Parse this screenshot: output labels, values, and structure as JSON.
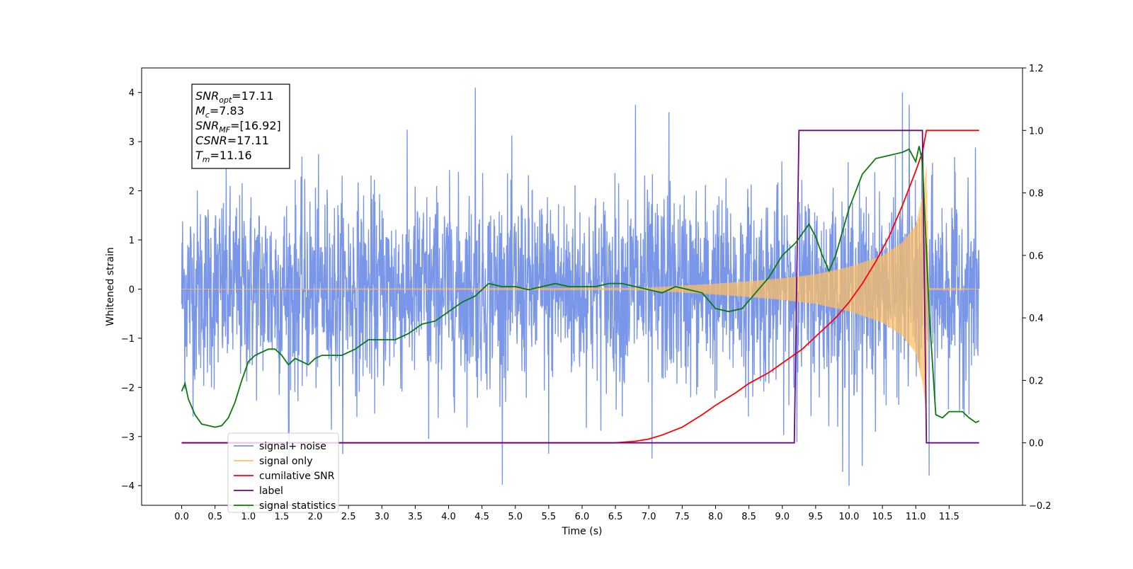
{
  "chart_data": {
    "type": "line",
    "xlabel": "Time (s)",
    "ylabel": "Whitened strain",
    "xlim": [
      -0.6,
      12.6
    ],
    "ylim": [
      -4.4,
      4.5
    ],
    "ylim_right": [
      -0.2,
      1.2
    ],
    "x_ticks": [
      "0.0",
      "0.5",
      "1.0",
      "1.5",
      "2.0",
      "2.5",
      "3.0",
      "3.5",
      "4.0",
      "4.5",
      "5.0",
      "5.5",
      "6.0",
      "6.5",
      "7.0",
      "7.5",
      "8.0",
      "8.5",
      "9.0",
      "9.5",
      "10.0",
      "10.5",
      "11.0",
      "11.5"
    ],
    "y_ticks": [
      "4",
      "3",
      "2",
      "1",
      "0",
      "−1",
      "−2",
      "−3",
      "−4"
    ],
    "y_ticks_right": [
      "1.2",
      "1.0",
      "0.8",
      "0.6",
      "0.4",
      "0.2",
      "0.0",
      "−0.2"
    ],
    "grid": false,
    "legend_position": "lower-left",
    "annotation": {
      "lines": [
        {
          "base": "SNR",
          "sub": "opt",
          "value": "=17.11"
        },
        {
          "base": "M",
          "sub": "c",
          "value": "=7.83"
        },
        {
          "base": "SNR",
          "sub": "MF",
          "value": "=[16.92]"
        },
        {
          "base": "CSNR",
          "sub": "",
          "value": "=17.11"
        },
        {
          "base": "T",
          "sub": "m",
          "value": "=11.16"
        }
      ]
    },
    "series": [
      {
        "name": "signal+ noise",
        "axis": "left",
        "color": "#7a96e8",
        "kind": "noise",
        "t_range": [
          0,
          11.95
        ],
        "typical_amplitude": 1.8,
        "notable_peaks": [
          {
            "x": 4.4,
            "y": 4.1
          },
          {
            "x": 10.8,
            "y": 4.0
          },
          {
            "x": 10.0,
            "y": -4.0
          },
          {
            "x": 10.2,
            "y": -3.6
          },
          {
            "x": 11.2,
            "y": -3.8
          },
          {
            "x": 7.05,
            "y": -3.45
          },
          {
            "x": 5.5,
            "y": -3.35
          },
          {
            "x": 7.3,
            "y": 3.6
          },
          {
            "x": 10.9,
            "y": 3.75
          },
          {
            "x": 6.8,
            "y": 3.75
          },
          {
            "x": 1.6,
            "y": -2.95
          },
          {
            "x": 3.7,
            "y": -3.05
          }
        ]
      },
      {
        "name": "signal only",
        "axis": "left",
        "color": "#ffbf60",
        "kind": "chirp",
        "t_range": [
          0,
          11.95
        ],
        "merger_time": 11.16,
        "envelope": [
          [
            0,
            0.0
          ],
          [
            6.5,
            0.01
          ],
          [
            7.0,
            0.03
          ],
          [
            7.5,
            0.07
          ],
          [
            8.0,
            0.11
          ],
          [
            8.5,
            0.16
          ],
          [
            9.0,
            0.22
          ],
          [
            9.5,
            0.3
          ],
          [
            10.0,
            0.45
          ],
          [
            10.5,
            0.68
          ],
          [
            10.8,
            0.95
          ],
          [
            11.0,
            1.3
          ],
          [
            11.1,
            1.9
          ],
          [
            11.16,
            2.5
          ],
          [
            11.2,
            0.02
          ],
          [
            11.95,
            0.0
          ]
        ]
      },
      {
        "name": "cumilative SNR",
        "axis": "right",
        "color": "#ff0000",
        "x": [
          0,
          6.5,
          6.8,
          7.0,
          7.2,
          7.5,
          7.8,
          8.0,
          8.3,
          8.5,
          8.8,
          9.0,
          9.3,
          9.5,
          9.8,
          10.0,
          10.2,
          10.4,
          10.6,
          10.8,
          11.0,
          11.1,
          11.16,
          11.2,
          11.95
        ],
        "y": [
          0,
          0,
          0.005,
          0.012,
          0.025,
          0.05,
          0.09,
          0.12,
          0.16,
          0.19,
          0.225,
          0.255,
          0.3,
          0.34,
          0.4,
          0.45,
          0.51,
          0.58,
          0.66,
          0.76,
          0.87,
          0.93,
          1.0,
          1.0,
          1.0
        ]
      },
      {
        "name": "label",
        "axis": "right",
        "color": "#6a0a82",
        "x": [
          0,
          9.18,
          9.25,
          11.1,
          11.16,
          11.95
        ],
        "y": [
          0,
          0,
          1,
          1,
          0,
          0
        ]
      },
      {
        "name": "signal statistics",
        "axis": "right",
        "color": "#0a7a0a",
        "x": [
          0,
          0.05,
          0.1,
          0.2,
          0.3,
          0.4,
          0.5,
          0.6,
          0.7,
          0.8,
          0.9,
          1.0,
          1.1,
          1.2,
          1.3,
          1.4,
          1.5,
          1.6,
          1.7,
          1.8,
          1.9,
          2.0,
          2.1,
          2.2,
          2.4,
          2.6,
          2.8,
          3.0,
          3.2,
          3.4,
          3.6,
          3.8,
          4.0,
          4.2,
          4.4,
          4.6,
          4.8,
          5.0,
          5.2,
          5.4,
          5.6,
          5.8,
          6.0,
          6.2,
          6.4,
          6.6,
          6.8,
          7.0,
          7.2,
          7.4,
          7.6,
          7.8,
          8.0,
          8.2,
          8.4,
          8.6,
          8.8,
          9.0,
          9.2,
          9.4,
          9.5,
          9.6,
          9.7,
          9.8,
          10.0,
          10.2,
          10.4,
          10.6,
          10.8,
          10.9,
          11.0,
          11.05,
          11.1,
          11.2,
          11.3,
          11.4,
          11.5,
          11.6,
          11.7,
          11.8,
          11.9,
          11.95
        ],
        "y": [
          0.165,
          0.19,
          0.14,
          0.09,
          0.06,
          0.055,
          0.05,
          0.055,
          0.08,
          0.13,
          0.2,
          0.26,
          0.28,
          0.29,
          0.3,
          0.3,
          0.28,
          0.25,
          0.27,
          0.26,
          0.25,
          0.27,
          0.28,
          0.28,
          0.28,
          0.3,
          0.33,
          0.33,
          0.33,
          0.35,
          0.38,
          0.39,
          0.42,
          0.45,
          0.47,
          0.51,
          0.5,
          0.5,
          0.49,
          0.5,
          0.51,
          0.5,
          0.5,
          0.5,
          0.51,
          0.51,
          0.5,
          0.49,
          0.48,
          0.5,
          0.49,
          0.48,
          0.43,
          0.42,
          0.43,
          0.48,
          0.53,
          0.6,
          0.64,
          0.7,
          0.66,
          0.6,
          0.55,
          0.6,
          0.75,
          0.86,
          0.91,
          0.92,
          0.93,
          0.94,
          0.9,
          0.95,
          0.9,
          0.42,
          0.09,
          0.08,
          0.1,
          0.1,
          0.1,
          0.08,
          0.065,
          0.07
        ]
      }
    ],
    "legend_entries": [
      {
        "label": "signal+ noise",
        "color": "#7a96e8"
      },
      {
        "label": "signal only",
        "color": "#ffbf60"
      },
      {
        "label": "cumilative SNR",
        "color": "#ff0000"
      },
      {
        "label": "label",
        "color": "#6a0a82"
      },
      {
        "label": "signal statistics",
        "color": "#0a7a0a"
      }
    ]
  }
}
